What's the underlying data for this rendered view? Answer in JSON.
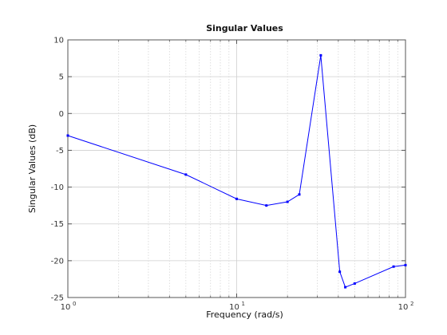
{
  "chart_data": {
    "type": "line",
    "title": "Singular Values",
    "xlabel": "Frequency (rad/s)",
    "ylabel": "Singular Values (dB)",
    "xscale": "log",
    "xlim": [
      1,
      100
    ],
    "ylim": [
      -25,
      10
    ],
    "grid": true,
    "x_ticks": [
      {
        "value": 1,
        "base": "10",
        "exp": "0"
      },
      {
        "value": 10,
        "base": "10",
        "exp": "1"
      },
      {
        "value": 100,
        "base": "10",
        "exp": "2"
      }
    ],
    "y_ticks": [
      10,
      5,
      0,
      -5,
      -10,
      -15,
      -20,
      -25
    ],
    "series": [
      {
        "color": "#0000ff",
        "marker": "point",
        "x": [
          1,
          5,
          10,
          15,
          20,
          23.5,
          31.5,
          40.8,
          44,
          50,
          85,
          100
        ],
        "y": [
          -3.0,
          -8.3,
          -11.6,
          -12.5,
          -12.0,
          -11.0,
          7.9,
          -21.5,
          -23.6,
          -23.1,
          -20.8,
          -20.6
        ]
      }
    ]
  }
}
